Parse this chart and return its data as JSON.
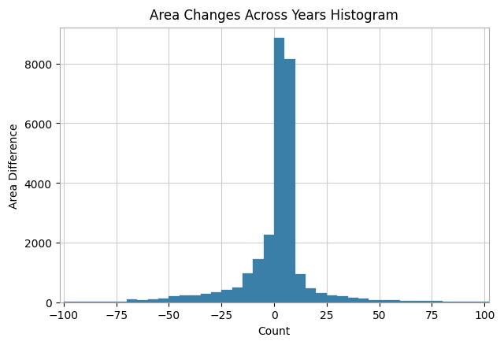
{
  "title": "Area Changes Across Years Histogram",
  "xlabel": "Count",
  "ylabel": "Area Difference",
  "xlim": [
    -102,
    102
  ],
  "ylim": [
    0,
    9200
  ],
  "bar_color": "#3a7fa8",
  "bar_edgecolor": "#3a7fa8",
  "bin_width": 5,
  "x_ticks": [
    -100,
    -75,
    -50,
    -25,
    0,
    25,
    50,
    75,
    100
  ],
  "y_ticks": [
    0,
    2000,
    4000,
    6000,
    8000
  ],
  "grid": true,
  "bar_heights": {
    "-100": 20,
    "-95": 10,
    "-90": 10,
    "-85": 15,
    "-80": 10,
    "-75": 10,
    "-70": 100,
    "-65": 75,
    "-60": 90,
    "-55": 120,
    "-50": 200,
    "-45": 215,
    "-40": 240,
    "-35": 280,
    "-30": 320,
    "-25": 420,
    "-20": 490,
    "-15": 980,
    "-10": 1430,
    "-5": 2260,
    "0": 8870,
    "5": 8150,
    "10": 950,
    "15": 470,
    "20": 300,
    "25": 230,
    "30": 195,
    "35": 145,
    "40": 115,
    "45": 80,
    "50": 65,
    "55": 60,
    "60": 50,
    "65": 45,
    "70": 38,
    "75": 32,
    "80": 28,
    "85": 22,
    "90": 18,
    "95": 12,
    "100": 8
  }
}
